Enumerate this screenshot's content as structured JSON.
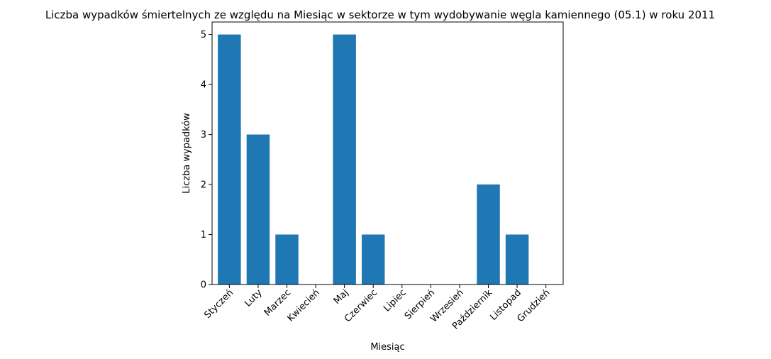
{
  "chart_data": {
    "type": "bar",
    "title": "Liczba wypadków śmiertelnych ze względu na Miesiąc w sektorze    w tym wydobywanie węgla kamiennego (05.1) w roku 2011",
    "xlabel": "Miesiąc",
    "ylabel": "Liczba wypadków",
    "categories": [
      "Styczeń",
      "Luty",
      "Marzec",
      "Kwiecień",
      "Maj",
      "Czerwiec",
      "Lipiec",
      "Sierpień",
      "Wrzesień",
      "Październik",
      "Listopad",
      "Grudzień"
    ],
    "values": [
      5,
      3,
      1,
      0,
      5,
      1,
      0,
      0,
      0,
      2,
      1,
      0
    ],
    "ylim": [
      0,
      5.25
    ],
    "yticks": [
      0,
      1,
      2,
      3,
      4,
      5
    ],
    "bar_color": "#1f77b4",
    "grid": false,
    "legend": "none"
  }
}
